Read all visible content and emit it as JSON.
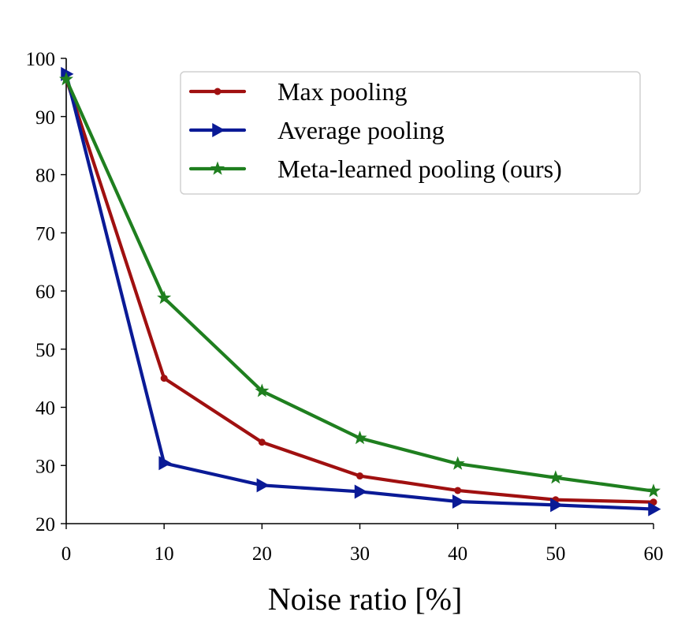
{
  "chart_data": {
    "type": "line",
    "title": "",
    "xlabel": "Noise ratio [%]",
    "ylabel": "",
    "x": [
      0,
      10,
      20,
      30,
      40,
      50,
      60
    ],
    "xlim": [
      0,
      60
    ],
    "ylim": [
      20,
      100
    ],
    "xticks": [
      "0",
      "10",
      "20",
      "30",
      "40",
      "50",
      "60"
    ],
    "yticks": [
      "20",
      "30",
      "40",
      "50",
      "60",
      "70",
      "80",
      "90",
      "100"
    ],
    "grid": false,
    "legend_position": "top-right",
    "series": [
      {
        "name": "Max pooling",
        "color": "#a01010",
        "marker": "circle",
        "values": [
          96.5,
          45.0,
          34.0,
          28.2,
          25.7,
          24.1,
          23.7
        ]
      },
      {
        "name": "Average pooling",
        "color": "#0a1a96",
        "marker": "triangle-right",
        "values": [
          97.3,
          30.4,
          26.6,
          25.5,
          23.8,
          23.2,
          22.5
        ]
      },
      {
        "name": "Meta-learned pooling (ours)",
        "color": "#1f7f1f",
        "marker": "star",
        "values": [
          96.4,
          58.8,
          42.8,
          34.7,
          30.3,
          27.9,
          25.6
        ]
      }
    ]
  }
}
